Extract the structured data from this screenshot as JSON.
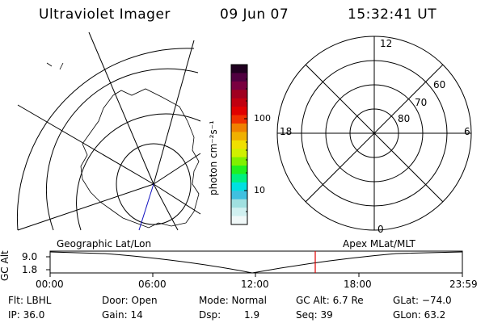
{
  "header": {
    "instrument": "Ultraviolet Imager",
    "date": "09 Jun 07",
    "time": "15:32:41 UT"
  },
  "colorbar": {
    "unit_label": "photon cm⁻²s⁻¹",
    "ticks": [
      "100",
      "10"
    ],
    "colors": [
      "#200020",
      "#500040",
      "#7a0040",
      "#a00020",
      "#c00010",
      "#e00000",
      "#f03000",
      "#f08000",
      "#f0b000",
      "#f0e000",
      "#d0f000",
      "#80f000",
      "#20f020",
      "#00f080",
      "#00e0e0",
      "#40c0e0",
      "#a0e0e0",
      "#d0f0f0",
      "#f0f8f8"
    ]
  },
  "geo_map": {
    "label": "Geographic Lat/Lon"
  },
  "polar_plot": {
    "label": "Apex MLat/MLT",
    "mlt_labels": {
      "top": "12",
      "left": "18",
      "right": "6",
      "bottom": "0"
    },
    "lat_labels": [
      "60",
      "70",
      "80"
    ]
  },
  "alt_plot": {
    "axis_label": "GC Alt",
    "ymax": "9.0",
    "ymin": "1.8",
    "x_ticks": [
      "00:00",
      "06:00",
      "12:00",
      "18:00",
      "23:59"
    ],
    "marker_color": "#e00000"
  },
  "info": {
    "flt": "Flt: LBHL",
    "ip": "IP: 36.0",
    "door": "Door: Open",
    "gain": "Gain: 14",
    "mode": "Mode: Normal",
    "dsp_label": "Dsp:",
    "dsp_value": "1.9",
    "gc_alt": "GC Alt: 6.7 Re",
    "seq": "Seq: 39",
    "glat": "GLat: −74.0",
    "glon": "GLon:  63.2"
  }
}
